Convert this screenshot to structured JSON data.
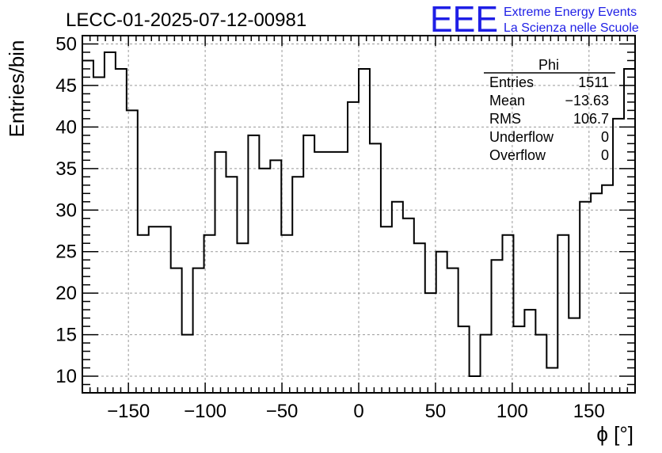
{
  "title": "LECC-01-2025-07-12-00981",
  "logo": {
    "letters": "EEE",
    "line1": "Extreme Energy Events",
    "line2": "La Scienza nelle Scuole",
    "color": "#1f1fe6"
  },
  "stats": {
    "name": "Phi",
    "rows": [
      {
        "label": "Entries",
        "value": "1511"
      },
      {
        "label": "Mean",
        "value": "−13.63"
      },
      {
        "label": "RMS",
        "value": "106.7"
      },
      {
        "label": "Underflow",
        "value": "0"
      },
      {
        "label": "Overflow",
        "value": "0"
      }
    ]
  },
  "chart_data": {
    "type": "histogram",
    "title": "LECC-01-2025-07-12-00981",
    "xlabel": "ϕ [°]",
    "ylabel": "Entries/bin",
    "xlim": [
      -180,
      180
    ],
    "ylim": [
      8,
      51
    ],
    "bin_width": 7.2,
    "xticks": [
      -150,
      -100,
      -50,
      0,
      50,
      100,
      150
    ],
    "yticks": [
      10,
      15,
      20,
      25,
      30,
      35,
      40,
      45,
      50
    ],
    "grid": true,
    "line_color": "#000000",
    "values": [
      48,
      46,
      49,
      47,
      42,
      27,
      28,
      28,
      23,
      15,
      23,
      27,
      37,
      34,
      26,
      39,
      35,
      36,
      27,
      34,
      39,
      37,
      37,
      37,
      43,
      47,
      38,
      28,
      31,
      29,
      26,
      20,
      25,
      23,
      16,
      10,
      15,
      24,
      27,
      16,
      18,
      15,
      11,
      27,
      17,
      31,
      32,
      33,
      41,
      47
    ]
  }
}
